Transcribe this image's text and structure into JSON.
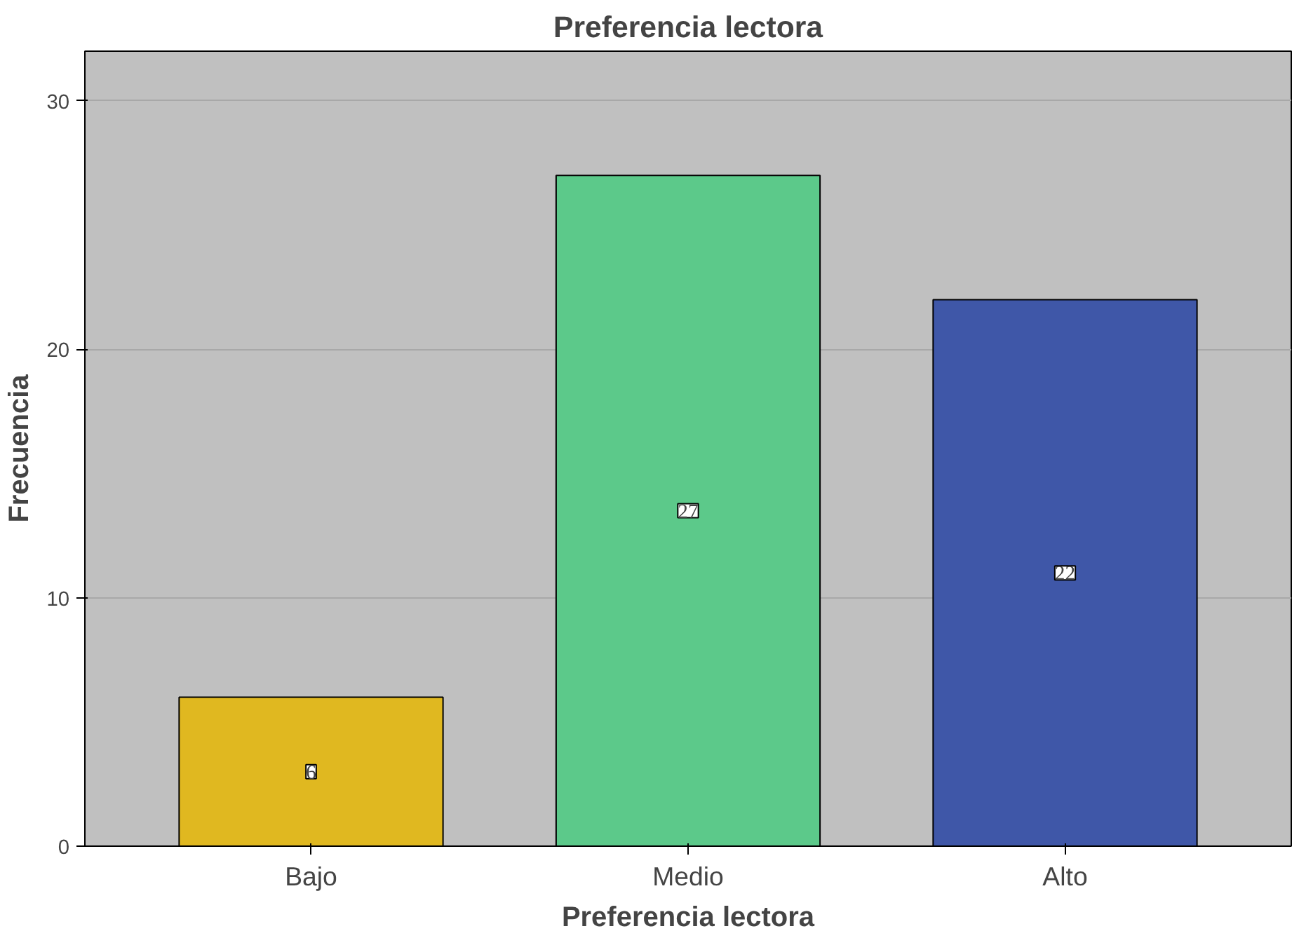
{
  "chart_data": {
    "type": "bar",
    "title": "Preferencia lectora",
    "xlabel": "Preferencia lectora",
    "ylabel": "Frecuencia",
    "categories": [
      "Bajo",
      "Medio",
      "Alto"
    ],
    "values": [
      6,
      27,
      22
    ],
    "colors": [
      "#e0b820",
      "#5cc98a",
      "#3f57a8"
    ],
    "ylim": [
      0,
      32
    ],
    "yticks": [
      0,
      10,
      20,
      30
    ],
    "grid": "y",
    "data_labels": true
  }
}
